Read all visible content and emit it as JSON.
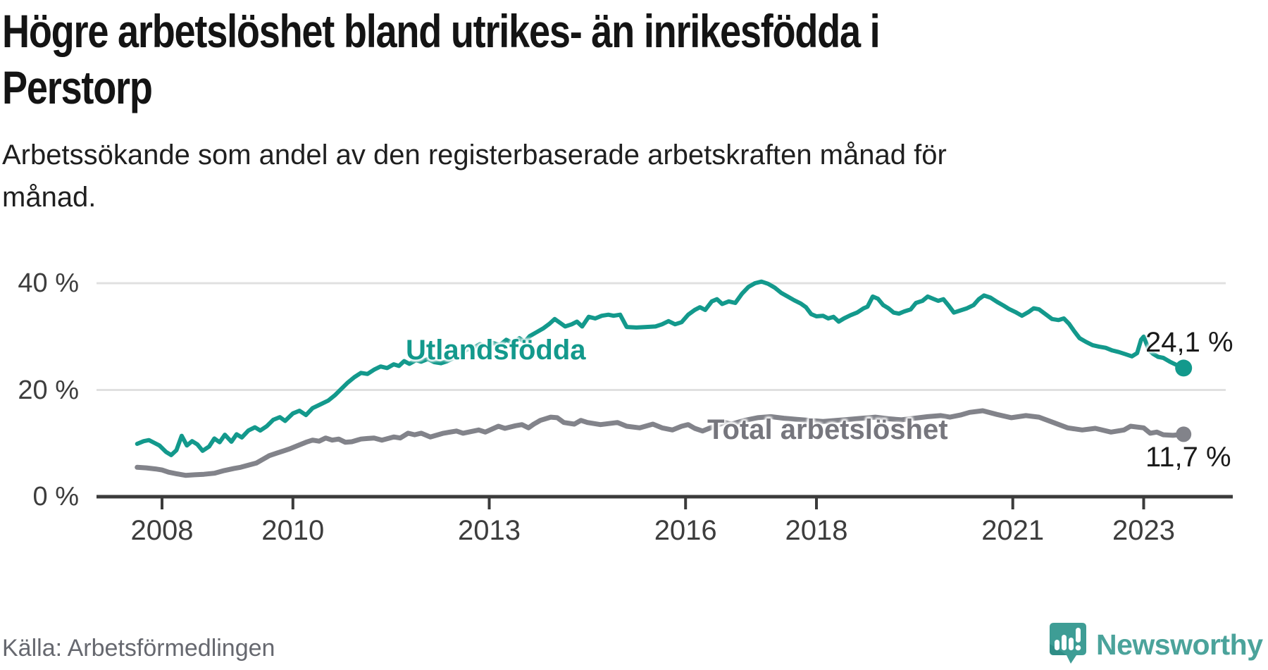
{
  "header": {
    "title_line1": "Högre arbetslöshet bland utrikes- än inrikesfödda i",
    "title_line2": "Perstorp",
    "subtitle_line1": "Arbetssökande som andel av den registerbaserade arbetskraften månad för",
    "subtitle_line2": "månad."
  },
  "chart_data": {
    "type": "line",
    "title": "Högre arbetslöshet bland utrikes- än inrikesfödda i Perstorp",
    "subtitle": "Arbetssökande som andel av den registerbaserade arbetskraften månad för månad.",
    "unit": "percent of registered labour force",
    "grid": "horizontal",
    "legend_position": "inline-labels",
    "xlim": [
      2007.0,
      2024.2
    ],
    "ylim": [
      0,
      42
    ],
    "x_ticks": [
      2008,
      2010,
      2013,
      2016,
      2018,
      2021,
      2023
    ],
    "y_ticks": [
      {
        "value": 0,
        "label": "0 %"
      },
      {
        "value": 20,
        "label": "20 %"
      },
      {
        "value": 40,
        "label": "40 %"
      }
    ],
    "note": "x values are approximate decimal-year positions of monthly observations, Jan 2008 – late 2023",
    "series": [
      {
        "name": "Utlandsfödda",
        "color": "#13998c",
        "end_value": 24.1,
        "end_label": "24,1 %",
        "points": [
          [
            2007.62,
            9.9
          ],
          [
            2007.72,
            10.4
          ],
          [
            2007.8,
            10.6
          ],
          [
            2007.88,
            10.1
          ],
          [
            2007.96,
            9.6
          ],
          [
            2008.06,
            8.4
          ],
          [
            2008.14,
            7.8
          ],
          [
            2008.22,
            8.7
          ],
          [
            2008.3,
            11.4
          ],
          [
            2008.38,
            9.6
          ],
          [
            2008.46,
            10.4
          ],
          [
            2008.54,
            9.8
          ],
          [
            2008.62,
            8.6
          ],
          [
            2008.72,
            9.4
          ],
          [
            2008.8,
            10.9
          ],
          [
            2008.88,
            10.2
          ],
          [
            2008.96,
            11.6
          ],
          [
            2009.06,
            10.3
          ],
          [
            2009.14,
            11.7
          ],
          [
            2009.22,
            11.1
          ],
          [
            2009.32,
            12.4
          ],
          [
            2009.42,
            13.0
          ],
          [
            2009.5,
            12.4
          ],
          [
            2009.6,
            13.2
          ],
          [
            2009.7,
            14.4
          ],
          [
            2009.8,
            14.9
          ],
          [
            2009.88,
            14.2
          ],
          [
            2010.0,
            15.6
          ],
          [
            2010.1,
            16.1
          ],
          [
            2010.2,
            15.3
          ],
          [
            2010.3,
            16.6
          ],
          [
            2010.42,
            17.3
          ],
          [
            2010.54,
            18.0
          ],
          [
            2010.64,
            19.0
          ],
          [
            2010.74,
            20.2
          ],
          [
            2010.84,
            21.4
          ],
          [
            2010.94,
            22.4
          ],
          [
            2011.04,
            23.2
          ],
          [
            2011.14,
            23.0
          ],
          [
            2011.24,
            23.8
          ],
          [
            2011.34,
            24.4
          ],
          [
            2011.44,
            24.1
          ],
          [
            2011.54,
            24.8
          ],
          [
            2011.62,
            24.5
          ],
          [
            2011.7,
            25.4
          ],
          [
            2011.78,
            24.9
          ],
          [
            2011.88,
            25.6
          ],
          [
            2011.96,
            25.3
          ],
          [
            2012.06,
            25.8
          ],
          [
            2012.16,
            25.2
          ],
          [
            2012.26,
            25.0
          ],
          [
            2012.36,
            25.4
          ],
          [
            2012.46,
            26.0
          ],
          [
            2012.56,
            26.7
          ],
          [
            2012.66,
            27.6
          ],
          [
            2012.76,
            27.9
          ],
          [
            2012.86,
            28.6
          ],
          [
            2012.96,
            28.0
          ],
          [
            2013.06,
            28.8
          ],
          [
            2013.16,
            28.4
          ],
          [
            2013.26,
            29.4
          ],
          [
            2013.36,
            28.8
          ],
          [
            2013.46,
            29.7
          ],
          [
            2013.54,
            29.0
          ],
          [
            2013.62,
            30.1
          ],
          [
            2013.72,
            30.8
          ],
          [
            2013.82,
            31.5
          ],
          [
            2013.92,
            32.4
          ],
          [
            2014.0,
            33.3
          ],
          [
            2014.08,
            32.6
          ],
          [
            2014.16,
            31.9
          ],
          [
            2014.26,
            32.3
          ],
          [
            2014.34,
            32.8
          ],
          [
            2014.42,
            31.9
          ],
          [
            2014.52,
            33.7
          ],
          [
            2014.62,
            33.4
          ],
          [
            2014.72,
            33.9
          ],
          [
            2014.82,
            34.1
          ],
          [
            2014.9,
            33.9
          ],
          [
            2015.0,
            34.1
          ],
          [
            2015.1,
            31.8
          ],
          [
            2015.25,
            31.7
          ],
          [
            2015.4,
            31.8
          ],
          [
            2015.54,
            31.9
          ],
          [
            2015.64,
            32.3
          ],
          [
            2015.74,
            32.9
          ],
          [
            2015.84,
            32.3
          ],
          [
            2015.94,
            32.7
          ],
          [
            2016.04,
            34.1
          ],
          [
            2016.14,
            35.0
          ],
          [
            2016.22,
            35.5
          ],
          [
            2016.3,
            35.0
          ],
          [
            2016.4,
            36.6
          ],
          [
            2016.48,
            37.0
          ],
          [
            2016.56,
            36.1
          ],
          [
            2016.66,
            36.6
          ],
          [
            2016.76,
            36.3
          ],
          [
            2016.86,
            38.0
          ],
          [
            2016.96,
            39.3
          ],
          [
            2017.06,
            40.0
          ],
          [
            2017.16,
            40.3
          ],
          [
            2017.26,
            39.9
          ],
          [
            2017.36,
            39.2
          ],
          [
            2017.46,
            38.2
          ],
          [
            2017.56,
            37.5
          ],
          [
            2017.66,
            36.8
          ],
          [
            2017.76,
            36.2
          ],
          [
            2017.84,
            35.5
          ],
          [
            2017.92,
            34.2
          ],
          [
            2018.0,
            33.8
          ],
          [
            2018.1,
            33.9
          ],
          [
            2018.18,
            33.4
          ],
          [
            2018.26,
            33.7
          ],
          [
            2018.34,
            32.8
          ],
          [
            2018.42,
            33.4
          ],
          [
            2018.52,
            34.0
          ],
          [
            2018.62,
            34.5
          ],
          [
            2018.72,
            35.3
          ],
          [
            2018.78,
            35.6
          ],
          [
            2018.86,
            37.5
          ],
          [
            2018.94,
            37.1
          ],
          [
            2019.02,
            35.9
          ],
          [
            2019.1,
            35.3
          ],
          [
            2019.18,
            34.5
          ],
          [
            2019.26,
            34.3
          ],
          [
            2019.34,
            34.7
          ],
          [
            2019.44,
            35.1
          ],
          [
            2019.52,
            36.3
          ],
          [
            2019.62,
            36.7
          ],
          [
            2019.7,
            37.5
          ],
          [
            2019.78,
            37.1
          ],
          [
            2019.86,
            36.7
          ],
          [
            2019.94,
            37.0
          ],
          [
            2020.02,
            35.8
          ],
          [
            2020.1,
            34.5
          ],
          [
            2020.2,
            34.9
          ],
          [
            2020.3,
            35.3
          ],
          [
            2020.4,
            35.9
          ],
          [
            2020.48,
            37.0
          ],
          [
            2020.56,
            37.7
          ],
          [
            2020.66,
            37.3
          ],
          [
            2020.76,
            36.5
          ],
          [
            2020.86,
            35.8
          ],
          [
            2020.94,
            35.2
          ],
          [
            2021.04,
            34.6
          ],
          [
            2021.14,
            33.9
          ],
          [
            2021.24,
            34.6
          ],
          [
            2021.32,
            35.3
          ],
          [
            2021.4,
            35.1
          ],
          [
            2021.5,
            34.2
          ],
          [
            2021.6,
            33.3
          ],
          [
            2021.7,
            33.1
          ],
          [
            2021.78,
            33.4
          ],
          [
            2021.86,
            32.4
          ],
          [
            2021.94,
            31.0
          ],
          [
            2022.02,
            29.7
          ],
          [
            2022.12,
            29.0
          ],
          [
            2022.22,
            28.4
          ],
          [
            2022.32,
            28.1
          ],
          [
            2022.42,
            27.9
          ],
          [
            2022.52,
            27.4
          ],
          [
            2022.62,
            27.1
          ],
          [
            2022.72,
            26.7
          ],
          [
            2022.82,
            26.3
          ],
          [
            2022.9,
            26.9
          ],
          [
            2022.96,
            29.4
          ],
          [
            2023.0,
            30.0
          ],
          [
            2023.08,
            27.5
          ],
          [
            2023.14,
            26.8
          ],
          [
            2023.22,
            26.2
          ],
          [
            2023.3,
            26.0
          ],
          [
            2023.4,
            25.3
          ],
          [
            2023.5,
            24.7
          ],
          [
            2023.61,
            24.1
          ]
        ]
      },
      {
        "name": "Total arbetslöshet",
        "color": "#82838a",
        "end_value": 11.7,
        "end_label": "11,7 %",
        "points": [
          [
            2007.62,
            5.5
          ],
          [
            2007.76,
            5.4
          ],
          [
            2007.9,
            5.2
          ],
          [
            2008.0,
            5.0
          ],
          [
            2008.1,
            4.6
          ],
          [
            2008.22,
            4.3
          ],
          [
            2008.36,
            4.0
          ],
          [
            2008.5,
            4.1
          ],
          [
            2008.64,
            4.2
          ],
          [
            2008.8,
            4.4
          ],
          [
            2008.95,
            4.9
          ],
          [
            2009.1,
            5.3
          ],
          [
            2009.2,
            5.5
          ],
          [
            2009.32,
            5.9
          ],
          [
            2009.44,
            6.3
          ],
          [
            2009.54,
            7.0
          ],
          [
            2009.64,
            7.7
          ],
          [
            2009.76,
            8.2
          ],
          [
            2009.86,
            8.6
          ],
          [
            2009.96,
            9.0
          ],
          [
            2010.08,
            9.6
          ],
          [
            2010.2,
            10.2
          ],
          [
            2010.3,
            10.6
          ],
          [
            2010.4,
            10.4
          ],
          [
            2010.5,
            11.0
          ],
          [
            2010.6,
            10.6
          ],
          [
            2010.7,
            10.8
          ],
          [
            2010.8,
            10.2
          ],
          [
            2010.9,
            10.3
          ],
          [
            2011.04,
            10.8
          ],
          [
            2011.14,
            10.9
          ],
          [
            2011.24,
            11.0
          ],
          [
            2011.36,
            10.6
          ],
          [
            2011.54,
            11.2
          ],
          [
            2011.64,
            11.0
          ],
          [
            2011.76,
            11.9
          ],
          [
            2011.86,
            11.6
          ],
          [
            2011.96,
            11.9
          ],
          [
            2012.1,
            11.2
          ],
          [
            2012.3,
            11.9
          ],
          [
            2012.5,
            12.3
          ],
          [
            2012.6,
            11.9
          ],
          [
            2012.84,
            12.5
          ],
          [
            2012.94,
            12.1
          ],
          [
            2013.14,
            13.2
          ],
          [
            2013.24,
            12.8
          ],
          [
            2013.4,
            13.3
          ],
          [
            2013.5,
            13.5
          ],
          [
            2013.6,
            12.9
          ],
          [
            2013.68,
            13.6
          ],
          [
            2013.78,
            14.3
          ],
          [
            2013.94,
            14.9
          ],
          [
            2014.04,
            14.8
          ],
          [
            2014.14,
            13.9
          ],
          [
            2014.3,
            13.6
          ],
          [
            2014.4,
            14.3
          ],
          [
            2014.5,
            13.9
          ],
          [
            2014.7,
            13.5
          ],
          [
            2014.96,
            13.9
          ],
          [
            2015.1,
            13.2
          ],
          [
            2015.3,
            12.9
          ],
          [
            2015.5,
            13.6
          ],
          [
            2015.64,
            12.9
          ],
          [
            2015.8,
            12.5
          ],
          [
            2015.94,
            13.2
          ],
          [
            2016.04,
            13.5
          ],
          [
            2016.14,
            12.8
          ],
          [
            2016.26,
            12.3
          ],
          [
            2016.5,
            13.5
          ],
          [
            2016.6,
            13.9
          ],
          [
            2016.7,
            13.6
          ],
          [
            2016.9,
            14.3
          ],
          [
            2017.1,
            14.8
          ],
          [
            2017.3,
            15.0
          ],
          [
            2017.5,
            14.7
          ],
          [
            2017.7,
            14.5
          ],
          [
            2017.9,
            14.3
          ],
          [
            2018.1,
            14.1
          ],
          [
            2018.3,
            14.3
          ],
          [
            2018.5,
            14.5
          ],
          [
            2018.7,
            14.7
          ],
          [
            2018.9,
            14.9
          ],
          [
            2019.1,
            14.6
          ],
          [
            2019.3,
            14.4
          ],
          [
            2019.5,
            14.7
          ],
          [
            2019.7,
            15.0
          ],
          [
            2019.9,
            15.2
          ],
          [
            2020.04,
            14.9
          ],
          [
            2020.2,
            15.3
          ],
          [
            2020.34,
            15.8
          ],
          [
            2020.54,
            16.1
          ],
          [
            2020.76,
            15.4
          ],
          [
            2020.98,
            14.8
          ],
          [
            2021.2,
            15.2
          ],
          [
            2021.4,
            14.9
          ],
          [
            2021.62,
            13.9
          ],
          [
            2021.84,
            12.9
          ],
          [
            2022.06,
            12.5
          ],
          [
            2022.26,
            12.8
          ],
          [
            2022.5,
            12.1
          ],
          [
            2022.7,
            12.5
          ],
          [
            2022.8,
            13.2
          ],
          [
            2023.0,
            12.9
          ],
          [
            2023.1,
            11.9
          ],
          [
            2023.2,
            12.1
          ],
          [
            2023.3,
            11.6
          ],
          [
            2023.45,
            11.5
          ],
          [
            2023.61,
            11.7
          ]
        ]
      }
    ]
  },
  "footer": {
    "source": "Källa: Arbetsförmedlingen",
    "brand_name": "Newsworthy"
  },
  "colors": {
    "accent_teal": "#13998c",
    "line_gray": "#82838a",
    "gridline": "#e0e0e0",
    "axis": "#3b3b3b",
    "brand_teal": "#4ba39b"
  }
}
